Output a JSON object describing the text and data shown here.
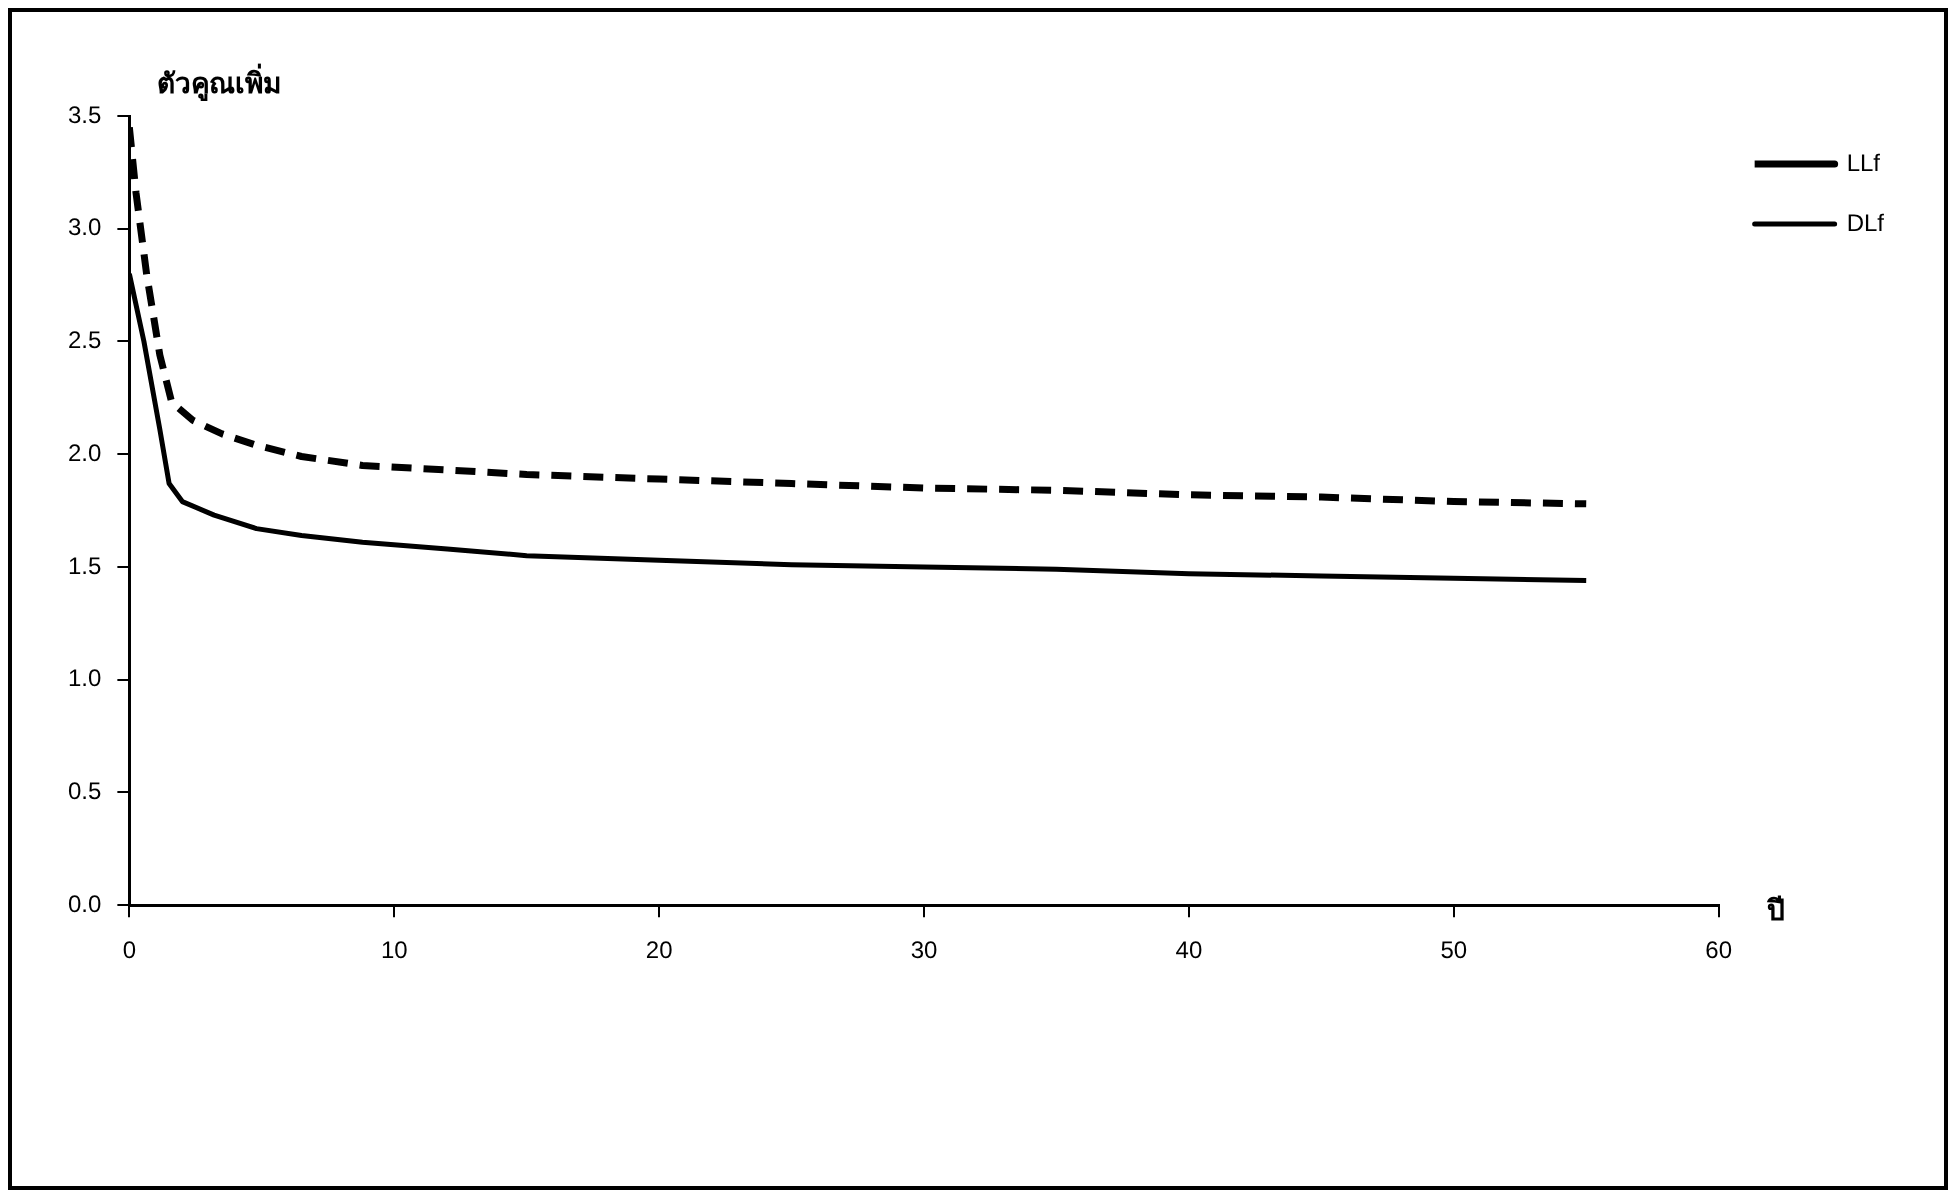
{
  "chart_data": {
    "type": "line",
    "xlabel": "ปี",
    "ylabel": "ตัวคูณเพิ่ม",
    "xlim": [
      0,
      60
    ],
    "xticks": [
      0,
      10,
      20,
      30,
      40,
      50,
      60
    ],
    "ylim": [
      0,
      3.5
    ],
    "yticks": [
      {
        "value": 0,
        "label": "0.0"
      },
      {
        "value": 0.5,
        "label": "0.5"
      },
      {
        "value": 1,
        "label": "1.0"
      },
      {
        "value": 1.5,
        "label": "1.5"
      },
      {
        "value": 2,
        "label": "2.0"
      },
      {
        "value": 2.5,
        "label": "2.5"
      },
      {
        "value": 3,
        "label": "3.0"
      },
      {
        "value": 3.5,
        "label": "3.5"
      }
    ],
    "grid": false,
    "legend": "right",
    "marker": "none",
    "series": [
      {
        "name": "LLf",
        "color": "#000000",
        "line_style": "dashed",
        "x": [
          0,
          0.25,
          0.65,
          1.15,
          1.6,
          2.4,
          3.5,
          4.8,
          6.5,
          8.8,
          12,
          15,
          20,
          25,
          30,
          35,
          40,
          45,
          50,
          55
        ],
        "values": [
          3.45,
          3.16,
          2.8,
          2.44,
          2.23,
          2.15,
          2.09,
          2.04,
          1.99,
          1.95,
          1.93,
          1.91,
          1.89,
          1.87,
          1.85,
          1.84,
          1.82,
          1.81,
          1.79,
          1.78
        ]
      },
      {
        "name": "DLf",
        "color": "#000000",
        "line_style": "solid",
        "x": [
          0,
          0.55,
          1.15,
          1.5,
          2,
          3.2,
          4.8,
          6.5,
          8.8,
          12,
          15,
          20,
          25,
          30,
          35,
          40,
          45,
          50,
          55
        ],
        "values": [
          2.8,
          2.5,
          2.11,
          1.87,
          1.79,
          1.73,
          1.67,
          1.64,
          1.61,
          1.58,
          1.55,
          1.53,
          1.51,
          1.5,
          1.49,
          1.47,
          1.46,
          1.45,
          1.44
        ]
      }
    ]
  }
}
